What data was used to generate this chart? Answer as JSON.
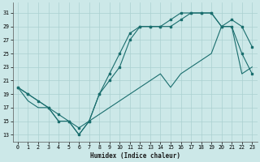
{
  "xlabel": "Humidex (Indice chaleur)",
  "background_color": "#cce8e8",
  "grid_color": "#aad0d0",
  "line_color": "#1a6e6e",
  "xlim": [
    -0.5,
    23.5
  ],
  "ylim": [
    12,
    32.5
  ],
  "yticks": [
    13,
    15,
    17,
    19,
    21,
    23,
    25,
    27,
    29,
    31
  ],
  "xticks": [
    0,
    1,
    2,
    3,
    4,
    5,
    6,
    7,
    8,
    9,
    10,
    11,
    12,
    13,
    14,
    15,
    16,
    17,
    18,
    19,
    20,
    21,
    22,
    23
  ],
  "line1_x": [
    0,
    1,
    2,
    3,
    4,
    5,
    6,
    7,
    8,
    9,
    10,
    11,
    12,
    13,
    14,
    15,
    16,
    17,
    18,
    19,
    20,
    21,
    22,
    23
  ],
  "line1_y": [
    20,
    19,
    18,
    17,
    15,
    15,
    13,
    15,
    19,
    22,
    25,
    28,
    29,
    29,
    29,
    30,
    31,
    31,
    31,
    31,
    29,
    29,
    25,
    22
  ],
  "line2_x": [
    0,
    1,
    3,
    4,
    5,
    6,
    7,
    8,
    9,
    10,
    11,
    12,
    13,
    14,
    15,
    16,
    17,
    18,
    19,
    20,
    21,
    22,
    23
  ],
  "line2_y": [
    20,
    19,
    17,
    16,
    15,
    14,
    15,
    19,
    21,
    23,
    27,
    29,
    29,
    29,
    29,
    30,
    31,
    31,
    31,
    29,
    30,
    29,
    26
  ],
  "line3_x": [
    0,
    1,
    2,
    3,
    4,
    5,
    6,
    7,
    8,
    9,
    10,
    11,
    12,
    13,
    14,
    15,
    16,
    17,
    18,
    19,
    20,
    21,
    22,
    23
  ],
  "line3_y": [
    20,
    18,
    17,
    17,
    15,
    15,
    13,
    15,
    16,
    17,
    18,
    19,
    20,
    21,
    22,
    20,
    22,
    23,
    24,
    25,
    29,
    29,
    22,
    23
  ]
}
